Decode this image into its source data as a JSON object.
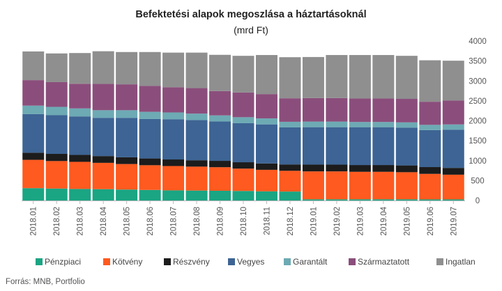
{
  "chart_data": {
    "type": "bar",
    "stacked": true,
    "title": "Befektetési alapok megoszlása a háztartásoknál",
    "subtitle": "(mrd Ft)",
    "source": "Forrás: MNB, Portfolio",
    "ylim": [
      0,
      4000
    ],
    "yticks": [
      0,
      500,
      1000,
      1500,
      2000,
      2500,
      3000,
      3500,
      4000
    ],
    "y_axis_position": "right",
    "grid": false,
    "legend_position": "bottom",
    "categories": [
      "2018.01",
      "2018.02",
      "2018.03",
      "2018.04",
      "2018.05",
      "2018.06",
      "2018.07",
      "2018.08",
      "2018.09",
      "2018.10",
      "2018.11",
      "2018.12",
      "2019.01",
      "2019.02",
      "2019.03",
      "2019.04",
      "2019.05",
      "2019.06",
      "2019.07"
    ],
    "series": [
      {
        "name": "Pénzpiaci",
        "color": "#1aa583",
        "values": [
          310,
          300,
          290,
          285,
          275,
          265,
          255,
          250,
          245,
          240,
          230,
          225,
          30,
          30,
          30,
          30,
          30,
          28,
          28
        ]
      },
      {
        "name": "Kötvény",
        "color": "#ff5a1f",
        "values": [
          710,
          690,
          680,
          660,
          640,
          620,
          610,
          600,
          590,
          560,
          540,
          520,
          700,
          700,
          690,
          690,
          680,
          640,
          620
        ]
      },
      {
        "name": "Részvény",
        "color": "#1c1c1c",
        "values": [
          180,
          180,
          175,
          170,
          170,
          170,
          165,
          160,
          160,
          160,
          160,
          160,
          170,
          170,
          170,
          170,
          170,
          170,
          170
        ]
      },
      {
        "name": "Vegyes",
        "color": "#3d6494",
        "values": [
          970,
          970,
          965,
          960,
          990,
          990,
          1010,
          1010,
          990,
          980,
          980,
          930,
          940,
          940,
          950,
          950,
          950,
          930,
          960
        ]
      },
      {
        "name": "Garantált",
        "color": "#6daab4",
        "values": [
          210,
          210,
          200,
          190,
          190,
          180,
          170,
          160,
          150,
          150,
          150,
          140,
          140,
          140,
          130,
          130,
          130,
          130,
          130
        ]
      },
      {
        "name": "Származtatott",
        "color": "#8b4e7c",
        "values": [
          640,
          620,
          620,
          660,
          650,
          650,
          630,
          640,
          610,
          620,
          610,
          590,
          590,
          590,
          590,
          590,
          590,
          580,
          600
        ]
      },
      {
        "name": "Ingatlan",
        "color": "#8f8f8f",
        "values": [
          720,
          720,
          770,
          820,
          810,
          850,
          870,
          890,
          910,
          920,
          980,
          1030,
          1030,
          1080,
          1090,
          1090,
          1080,
          1040,
          1000
        ]
      }
    ]
  }
}
